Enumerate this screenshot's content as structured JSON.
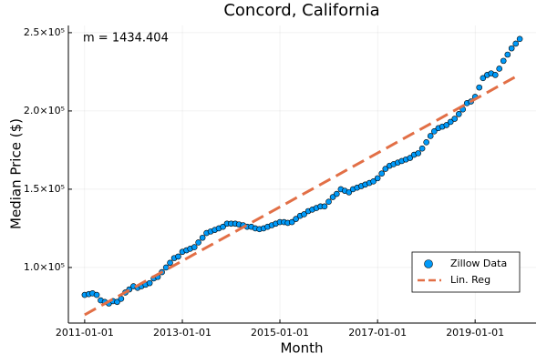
{
  "chart_data": {
    "type": "scatter",
    "title": "Concord, California",
    "x_label": "Month",
    "y_label": "Median Price ($)",
    "annotation": "m = 1434.404",
    "xlim": [
      "2010-09-01",
      "2020-04-01"
    ],
    "xticks": [
      "2011-01-01",
      "2013-01-01",
      "2015-01-01",
      "2017-01-01",
      "2019-01-01"
    ],
    "ylim": [
      64500,
      254600
    ],
    "yticks": [
      {
        "value": 100000,
        "label": "1.0×10⁵"
      },
      {
        "value": 150000,
        "label": "1.5×10⁵"
      },
      {
        "value": 200000,
        "label": "2.0×10⁵"
      },
      {
        "value": 250000,
        "label": "2.5×10⁵"
      }
    ],
    "grid": true,
    "legend": "bottom right",
    "series": [
      {
        "name": "Zillow Data",
        "type": "scatter",
        "color": "#009af9",
        "x": [
          "2011-01-01",
          "2011-02-01",
          "2011-03-01",
          "2011-04-01",
          "2011-05-01",
          "2011-06-01",
          "2011-07-01",
          "2011-08-01",
          "2011-09-01",
          "2011-10-01",
          "2011-11-01",
          "2011-12-01",
          "2012-01-01",
          "2012-02-01",
          "2012-03-01",
          "2012-04-01",
          "2012-05-01",
          "2012-06-01",
          "2012-07-01",
          "2012-08-01",
          "2012-09-01",
          "2012-10-01",
          "2012-11-01",
          "2012-12-01",
          "2013-01-01",
          "2013-02-01",
          "2013-03-01",
          "2013-04-01",
          "2013-05-01",
          "2013-06-01",
          "2013-07-01",
          "2013-08-01",
          "2013-09-01",
          "2013-10-01",
          "2013-11-01",
          "2013-12-01",
          "2014-01-01",
          "2014-02-01",
          "2014-03-01",
          "2014-04-01",
          "2014-05-01",
          "2014-06-01",
          "2014-07-01",
          "2014-08-01",
          "2014-09-01",
          "2014-10-01",
          "2014-11-01",
          "2014-12-01",
          "2015-01-01",
          "2015-02-01",
          "2015-03-01",
          "2015-04-01",
          "2015-05-01",
          "2015-06-01",
          "2015-07-01",
          "2015-08-01",
          "2015-09-01",
          "2015-10-01",
          "2015-11-01",
          "2015-12-01",
          "2016-01-01",
          "2016-02-01",
          "2016-03-01",
          "2016-04-01",
          "2016-05-01",
          "2016-06-01",
          "2016-07-01",
          "2016-08-01",
          "2016-09-01",
          "2016-10-01",
          "2016-11-01",
          "2016-12-01",
          "2017-01-01",
          "2017-02-01",
          "2017-03-01",
          "2017-04-01",
          "2017-05-01",
          "2017-06-01",
          "2017-07-01",
          "2017-08-01",
          "2017-09-01",
          "2017-10-01",
          "2017-11-01",
          "2017-12-01",
          "2018-01-01",
          "2018-02-01",
          "2018-03-01",
          "2018-04-01",
          "2018-05-01",
          "2018-06-01",
          "2018-07-01",
          "2018-08-01",
          "2018-09-01",
          "2018-10-01",
          "2018-11-01",
          "2018-12-01",
          "2019-01-01",
          "2019-02-01",
          "2019-03-01",
          "2019-04-01",
          "2019-05-01",
          "2019-06-01",
          "2019-07-01",
          "2019-08-01",
          "2019-09-01",
          "2019-10-01",
          "2019-11-01",
          "2019-12-01"
        ],
        "values": [
          82500,
          83000,
          83500,
          82500,
          79000,
          78000,
          77000,
          78500,
          78000,
          80000,
          84000,
          86000,
          88000,
          87000,
          88000,
          89000,
          90000,
          93000,
          94000,
          97000,
          100000,
          103000,
          106000,
          107000,
          110000,
          111000,
          112000,
          113000,
          116000,
          119000,
          122000,
          123000,
          124000,
          125000,
          126000,
          128000,
          128000,
          128000,
          127500,
          127000,
          126000,
          126000,
          125000,
          124500,
          125000,
          126000,
          127000,
          128000,
          129000,
          129000,
          128500,
          129000,
          131000,
          133000,
          134000,
          136000,
          137000,
          138000,
          139000,
          139000,
          142000,
          145000,
          147000,
          150000,
          149000,
          148000,
          150000,
          151000,
          152000,
          153000,
          154000,
          155000,
          157000,
          160000,
          163000,
          165000,
          166000,
          167000,
          168000,
          169000,
          170000,
          172000,
          173000,
          176000,
          180000,
          184000,
          187000,
          189000,
          190000,
          191000,
          193000,
          195000,
          198000,
          201000,
          205000,
          206000,
          209000,
          215000,
          221000,
          223000,
          224000,
          223000,
          227000,
          232000,
          236000,
          240000,
          243000,
          246000
        ]
      },
      {
        "name": "Lin. Reg",
        "type": "line",
        "color": "#e26f46",
        "x": [
          "2011-01-01",
          "2019-12-01"
        ],
        "values": [
          69800,
          223300
        ]
      }
    ]
  }
}
